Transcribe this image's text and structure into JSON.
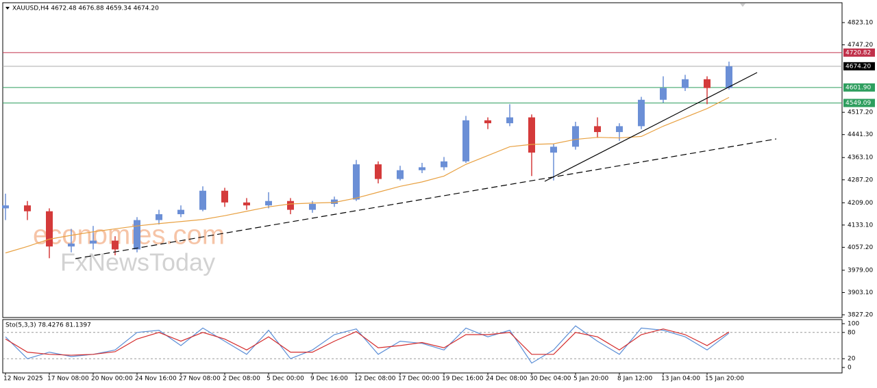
{
  "chart_data": {
    "type": "candlestick",
    "title": "XAUUSD,H4  4672.48 4676.88 4659.34 4674.20",
    "watermarks": [
      "economies.com",
      "FxNewsToday"
    ],
    "categories": [
      "12 Nov 2025",
      null,
      "17 Nov 08:00",
      null,
      "20 Nov 00:00",
      null,
      "24 Nov 16:00",
      null,
      "27 Nov 08:00",
      null,
      "2 Dec 08:00",
      null,
      "5 Dec 00:00",
      null,
      "9 Dec 16:00",
      null,
      "12 Dec 08:00",
      null,
      "17 Dec 00:00",
      null,
      "19 Dec 16:00",
      null,
      "24 Dec 08:00",
      null,
      "30 Dec 04:00",
      null,
      "5 Jan 20:00",
      null,
      "8 Jan 12:00",
      null,
      "13 Jan 04:00",
      null,
      "15 Jan 20:00",
      null
    ],
    "open": [
      4190,
      4200,
      4180,
      4060,
      4070,
      4080,
      4050,
      4150,
      4170,
      4185,
      4250,
      4210,
      4200,
      4215,
      4185,
      4205,
      4220,
      4340,
      4290,
      4320,
      4330,
      4350,
      4490,
      4480,
      4500,
      4380,
      4400,
      4470,
      4450,
      4470,
      4560,
      4600,
      4630,
      4600
    ],
    "high": [
      4240,
      4215,
      4190,
      4120,
      4130,
      4095,
      4160,
      4185,
      4200,
      4265,
      4260,
      4225,
      4245,
      4225,
      4215,
      4230,
      4355,
      4350,
      4335,
      4345,
      4365,
      4505,
      4500,
      4545,
      4510,
      4410,
      4485,
      4500,
      4480,
      4570,
      4640,
      4645,
      4640,
      4690
    ],
    "low": [
      4150,
      4150,
      4020,
      4040,
      4050,
      4030,
      4040,
      4135,
      4160,
      4180,
      4195,
      4185,
      4190,
      4170,
      4175,
      4195,
      4215,
      4275,
      4285,
      4310,
      4320,
      4345,
      4460,
      4470,
      4300,
      4285,
      4390,
      4430,
      4420,
      4460,
      4550,
      4590,
      4545,
      4595
    ],
    "close": [
      4200,
      4180,
      4060,
      4070,
      4080,
      4050,
      4150,
      4170,
      4185,
      4250,
      4210,
      4200,
      4215,
      4185,
      4205,
      4220,
      4340,
      4290,
      4320,
      4330,
      4350,
      4490,
      4480,
      4500,
      4380,
      4400,
      4470,
      4450,
      4470,
      4560,
      4600,
      4630,
      4600,
      4674.2
    ],
    "up_color": "#6b8fd6",
    "down_color": "#d43a3a",
    "moving_average": {
      "color": "#e8a040",
      "values": [
        4038,
        4060,
        4085,
        4098,
        4110,
        4120,
        4130,
        4138,
        4145,
        4152,
        4165,
        4180,
        4195,
        4205,
        4208,
        4210,
        4225,
        4245,
        4265,
        4280,
        4300,
        4340,
        4370,
        4400,
        4408,
        4410,
        4425,
        4432,
        4430,
        4435,
        4470,
        4500,
        4530,
        4568
      ]
    },
    "ylim": [
      3817.9,
      4890.7
    ],
    "yticks": [
      {
        "value": 4823.1,
        "label": "4823.10"
      },
      {
        "value": 4747.2,
        "label": "4747.20"
      },
      {
        "value": 4517.2,
        "label": "4517.20"
      },
      {
        "value": 4441.3,
        "label": "4441.30"
      },
      {
        "value": 4363.1,
        "label": "4363.10"
      },
      {
        "value": 4287.2,
        "label": "4287.20"
      },
      {
        "value": 4209,
        "label": "4209.00"
      },
      {
        "value": 4133.1,
        "label": "4133.10"
      },
      {
        "value": 4057.2,
        "label": "4057.20"
      },
      {
        "value": 3979,
        "label": "3979.00"
      },
      {
        "value": 3903.1,
        "label": "3903.10"
      },
      {
        "value": 3827.2,
        "label": "3827.20"
      }
    ],
    "hlines": [
      {
        "value": 4720.82,
        "label": "4720.82",
        "color": "#c0304a"
      },
      {
        "value": 4674.2,
        "label": "4674.20",
        "color": "#000000"
      },
      {
        "value": 4601.9,
        "label": "4601.90",
        "color": "#2e9e5e"
      },
      {
        "value": 4549.09,
        "label": "4549.09",
        "color": "#2e9e5e"
      }
    ],
    "oscillator": {
      "title": "Sto(5,3,3) 78.4276 81.1397",
      "ylim": [
        -12.5,
        109.4
      ],
      "yticks": [
        0,
        20,
        80,
        100
      ],
      "levels": [
        20,
        80
      ],
      "series": [
        {
          "color": "#5b8ed6",
          "values": [
            70,
            20,
            35,
            25,
            30,
            40,
            80,
            85,
            50,
            90,
            60,
            30,
            85,
            20,
            40,
            75,
            88,
            30,
            60,
            55,
            40,
            90,
            70,
            85,
            10,
            40,
            95,
            60,
            30,
            90,
            85,
            70,
            40,
            78.43
          ]
        },
        {
          "color": "#d42a2a",
          "values": [
            65,
            35,
            30,
            28,
            30,
            36,
            65,
            80,
            60,
            80,
            65,
            40,
            70,
            35,
            35,
            60,
            82,
            45,
            50,
            57,
            45,
            75,
            75,
            80,
            30,
            30,
            80,
            70,
            40,
            75,
            88,
            75,
            50,
            81.14
          ]
        }
      ]
    }
  }
}
